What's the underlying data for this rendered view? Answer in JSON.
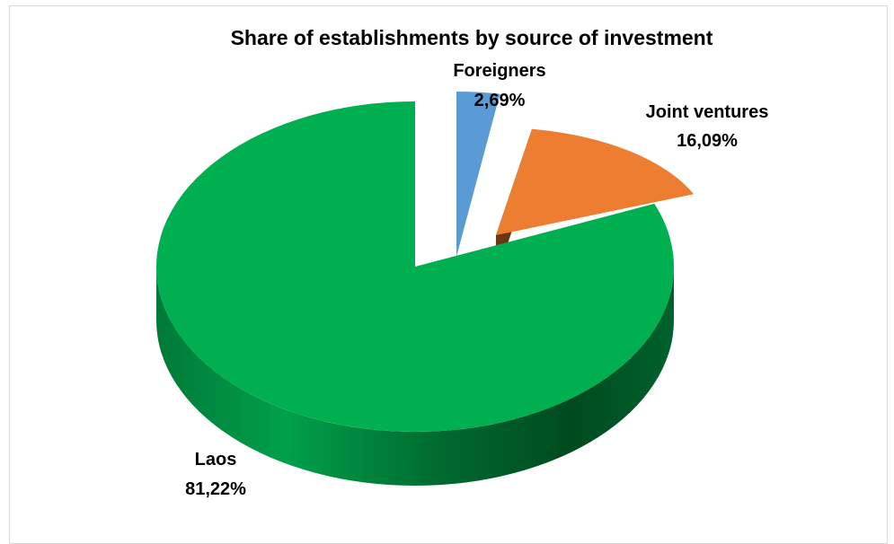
{
  "chart_data": {
    "type": "pie",
    "title": "Share of establishments by source of investment",
    "slices": [
      {
        "label": "Laos",
        "value_label": "81,22%",
        "value": 81.22,
        "color": "#00b050"
      },
      {
        "label": "Foreigners",
        "value_label": "2,69%",
        "value": 2.69,
        "color": "#5b9bd5"
      },
      {
        "label": "Joint ventures",
        "value_label": "16,09%",
        "value": 16.09,
        "color": "#ed7d31"
      }
    ],
    "exploded": true,
    "style": "3d"
  }
}
